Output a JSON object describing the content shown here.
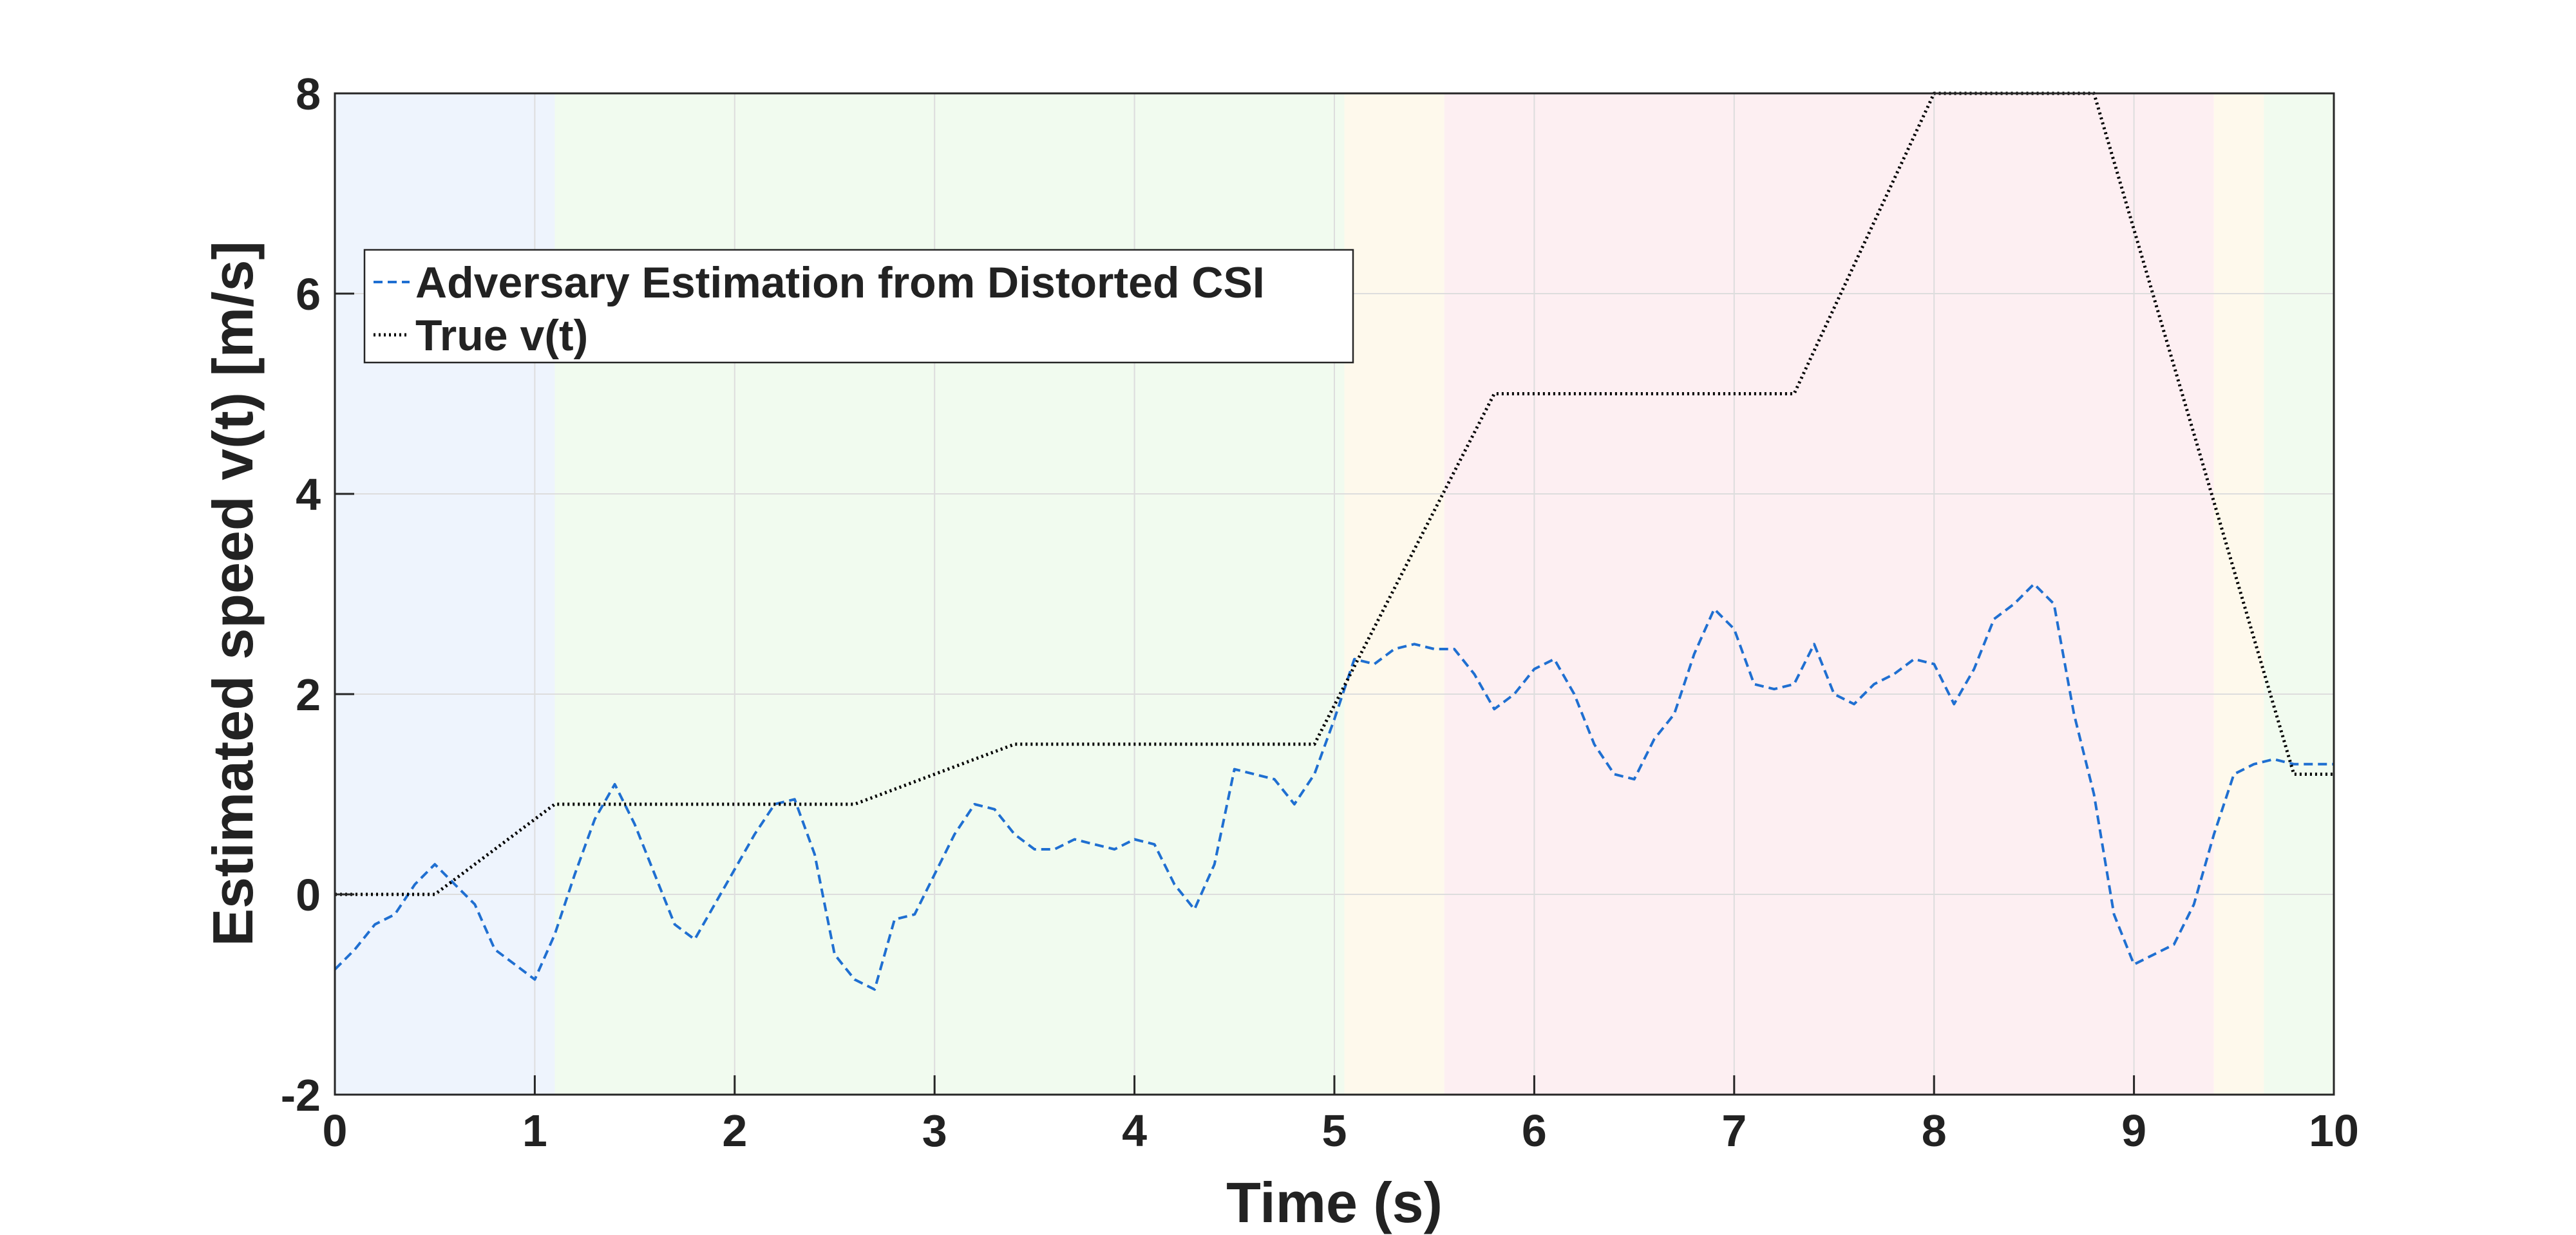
{
  "chart_data": {
    "type": "line",
    "xlabel": "Time (s)",
    "ylabel": "Estimated speed v(t) [m/s]",
    "xlim": [
      0,
      10
    ],
    "ylim": [
      -2,
      8
    ],
    "xticks": [
      "0",
      "1",
      "2",
      "3",
      "4",
      "5",
      "6",
      "7",
      "8",
      "9",
      "10"
    ],
    "yticks": [
      "-2",
      "0",
      "2",
      "4",
      "6",
      "8"
    ],
    "grid": true,
    "legend_position": "upper-left",
    "background_bands": [
      {
        "x0": 0.0,
        "x1": 1.1,
        "color": "#eef4fd"
      },
      {
        "x0": 1.1,
        "x1": 5.05,
        "color": "#f1fbef"
      },
      {
        "x0": 5.05,
        "x1": 5.55,
        "color": "#fef9ec"
      },
      {
        "x0": 5.55,
        "x1": 9.4,
        "color": "#fdeff2"
      },
      {
        "x0": 9.4,
        "x1": 9.65,
        "color": "#fef9ec"
      },
      {
        "x0": 9.65,
        "x1": 10.0,
        "color": "#f1fbef"
      }
    ],
    "series": [
      {
        "name": "Adversary Estimation from Distorted CSI",
        "style": "dashed",
        "color": "#1f6fd1",
        "x": [
          0,
          0.1,
          0.2,
          0.3,
          0.4,
          0.5,
          0.6,
          0.7,
          0.8,
          0.9,
          1.0,
          1.1,
          1.2,
          1.3,
          1.4,
          1.5,
          1.6,
          1.7,
          1.8,
          1.9,
          2.0,
          2.1,
          2.2,
          2.3,
          2.4,
          2.5,
          2.6,
          2.7,
          2.8,
          2.9,
          3.0,
          3.1,
          3.2,
          3.3,
          3.4,
          3.5,
          3.6,
          3.7,
          3.8,
          3.9,
          4.0,
          4.1,
          4.2,
          4.3,
          4.4,
          4.5,
          4.6,
          4.7,
          4.8,
          4.9,
          5.0,
          5.1,
          5.2,
          5.3,
          5.4,
          5.5,
          5.6,
          5.7,
          5.8,
          5.9,
          6.0,
          6.1,
          6.2,
          6.3,
          6.4,
          6.5,
          6.6,
          6.7,
          6.8,
          6.9,
          7.0,
          7.1,
          7.2,
          7.3,
          7.4,
          7.5,
          7.6,
          7.7,
          7.8,
          7.9,
          8.0,
          8.1,
          8.2,
          8.3,
          8.4,
          8.5,
          8.6,
          8.7,
          8.8,
          8.9,
          9.0,
          9.1,
          9.2,
          9.3,
          9.4,
          9.5,
          9.6,
          9.7,
          9.8,
          9.9,
          10.0
        ],
        "values": [
          -0.75,
          -0.55,
          -0.3,
          -0.2,
          0.1,
          0.3,
          0.1,
          -0.1,
          -0.55,
          -0.7,
          -0.85,
          -0.4,
          0.2,
          0.75,
          1.1,
          0.7,
          0.2,
          -0.3,
          -0.45,
          -0.1,
          0.25,
          0.6,
          0.9,
          0.95,
          0.4,
          -0.6,
          -0.85,
          -0.95,
          -0.25,
          -0.2,
          0.2,
          0.6,
          0.9,
          0.85,
          0.6,
          0.45,
          0.45,
          0.55,
          0.5,
          0.45,
          0.55,
          0.5,
          0.1,
          -0.15,
          0.3,
          1.25,
          1.2,
          1.15,
          0.9,
          1.2,
          1.75,
          2.35,
          2.3,
          2.45,
          2.5,
          2.45,
          2.45,
          2.2,
          1.85,
          2.0,
          2.25,
          2.35,
          2.0,
          1.5,
          1.2,
          1.15,
          1.55,
          1.8,
          2.4,
          2.85,
          2.65,
          2.1,
          2.05,
          2.1,
          2.5,
          2.0,
          1.9,
          2.1,
          2.2,
          2.35,
          2.3,
          1.9,
          2.25,
          2.75,
          2.9,
          3.1,
          2.9,
          1.8,
          1.0,
          -0.2,
          -0.7,
          -0.6,
          -0.5,
          -0.1,
          0.6,
          1.2,
          1.3,
          1.35,
          1.3,
          1.3,
          1.3
        ]
      },
      {
        "name": "True v(t)",
        "style": "dotted",
        "color": "#000000",
        "x": [
          0,
          0.5,
          1.1,
          2.6,
          3.4,
          4.9,
          5.8,
          7.3,
          8.0,
          8.8,
          9.8,
          10.0
        ],
        "values": [
          0,
          0,
          0.9,
          0.9,
          1.5,
          1.5,
          5.0,
          5.0,
          8.0,
          8.0,
          1.2,
          1.2
        ]
      }
    ]
  }
}
